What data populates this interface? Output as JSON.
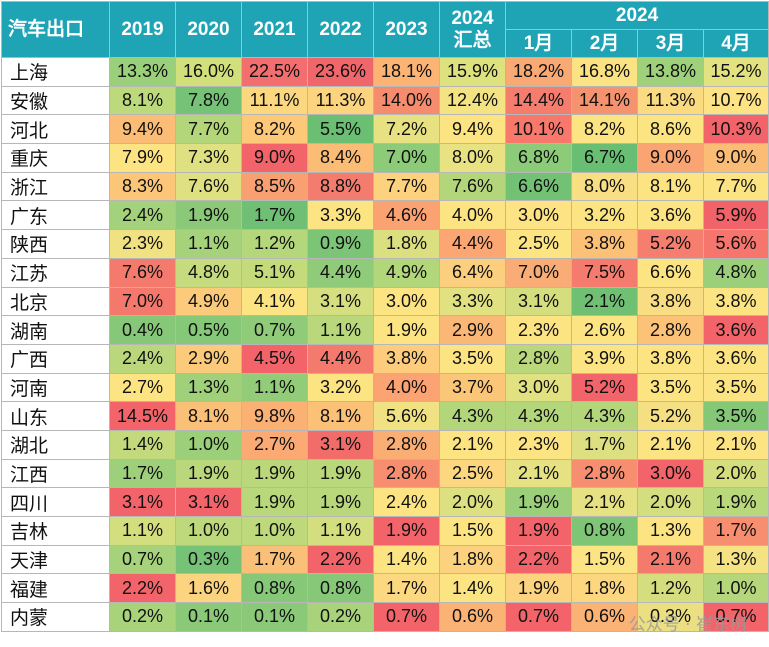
{
  "chart_data": {
    "type": "table",
    "title": "汽车出口",
    "columns": [
      "2019",
      "2020",
      "2021",
      "2022",
      "2023",
      "2024汇总",
      "1月",
      "2月",
      "3月",
      "4月"
    ],
    "header": {
      "corner": "汽车出口",
      "years": [
        "2019",
        "2020",
        "2021",
        "2022",
        "2023"
      ],
      "ytd_year": "2024",
      "ytd_label": "汇总",
      "month_group": "2024",
      "months": [
        "1月",
        "2月",
        "3月",
        "4月"
      ]
    },
    "rows": [
      {
        "province": "上海",
        "values": [
          "13.3%",
          "16.0%",
          "22.5%",
          "23.6%",
          "18.1%",
          "15.9%",
          "18.2%",
          "16.8%",
          "13.8%",
          "15.2%"
        ],
        "colors": [
          "#9bd07a",
          "#d2e07c",
          "#f36f6f",
          "#f0676b",
          "#fbb474",
          "#dde17e",
          "#f9a973",
          "#fbe283",
          "#9fd17b",
          "#e3e280"
        ]
      },
      {
        "province": "安徽",
        "values": [
          "8.1%",
          "7.8%",
          "11.1%",
          "11.3%",
          "14.0%",
          "12.4%",
          "14.4%",
          "14.1%",
          "11.3%",
          "10.7%"
        ],
        "colors": [
          "#bcd97b",
          "#76c277",
          "#fbd880",
          "#fcd47f",
          "#f58c6e",
          "#f4e383",
          "#f47d6e",
          "#f6936f",
          "#fbdb81",
          "#fde383"
        ]
      },
      {
        "province": "河北",
        "values": [
          "9.4%",
          "7.7%",
          "8.2%",
          "5.5%",
          "7.2%",
          "9.4%",
          "10.1%",
          "8.2%",
          "8.6%",
          "10.3%"
        ],
        "colors": [
          "#fbbc75",
          "#b4d67a",
          "#fdc878",
          "#6bbf73",
          "#e8e182",
          "#fde483",
          "#f8786c",
          "#fde483",
          "#fde483",
          "#f26469"
        ]
      },
      {
        "province": "重庆",
        "values": [
          "7.9%",
          "7.3%",
          "9.0%",
          "8.4%",
          "7.0%",
          "8.0%",
          "6.8%",
          "6.7%",
          "9.0%",
          "9.0%"
        ],
        "colors": [
          "#fde483",
          "#dfe081",
          "#f26469",
          "#fbbd75",
          "#8ccb78",
          "#e9e282",
          "#8ccb78",
          "#68bf73",
          "#fba473",
          "#fbbd76"
        ]
      },
      {
        "province": "浙江",
        "values": [
          "8.3%",
          "7.6%",
          "8.5%",
          "8.8%",
          "7.7%",
          "7.6%",
          "6.6%",
          "8.0%",
          "8.1%",
          "7.7%"
        ],
        "colors": [
          "#fcc678",
          "#dfe081",
          "#f9a072",
          "#f37c6e",
          "#fdd27e",
          "#b3d67a",
          "#73c175",
          "#f9df83",
          "#fde483",
          "#fde483"
        ]
      },
      {
        "province": "广东",
        "values": [
          "2.4%",
          "1.9%",
          "1.7%",
          "3.3%",
          "4.6%",
          "4.0%",
          "3.0%",
          "3.2%",
          "3.6%",
          "5.9%"
        ],
        "colors": [
          "#a4d17b",
          "#8bc979",
          "#6fc074",
          "#fde483",
          "#fba273",
          "#fde483",
          "#fde383",
          "#fde483",
          "#fde483",
          "#f26369"
        ]
      },
      {
        "province": "陕西",
        "values": [
          "2.3%",
          "1.1%",
          "1.2%",
          "0.9%",
          "1.8%",
          "4.4%",
          "2.5%",
          "3.8%",
          "5.2%",
          "5.6%"
        ],
        "colors": [
          "#f0e282",
          "#a5d27b",
          "#b5d77b",
          "#7cc476",
          "#dbdf80",
          "#fba673",
          "#fde483",
          "#fcc077",
          "#f67e6e",
          "#f6756c"
        ]
      },
      {
        "province": "江苏",
        "values": [
          "7.6%",
          "4.8%",
          "5.1%",
          "4.4%",
          "4.9%",
          "6.4%",
          "7.0%",
          "7.5%",
          "6.6%",
          "4.8%"
        ],
        "colors": [
          "#f37a6d",
          "#c6db7d",
          "#c4db7c",
          "#8fcb78",
          "#b2d67a",
          "#fbcf7e",
          "#f9ac75",
          "#f47b6d",
          "#fde483",
          "#9ccf79"
        ]
      },
      {
        "province": "北京",
        "values": [
          "7.0%",
          "4.9%",
          "4.1%",
          "3.1%",
          "3.0%",
          "3.3%",
          "3.1%",
          "2.1%",
          "3.8%",
          "3.8%"
        ],
        "colors": [
          "#f4786c",
          "#fcca7b",
          "#fde483",
          "#d6df7f",
          "#fde483",
          "#e1e182",
          "#d4de7f",
          "#70c074",
          "#f8dd82",
          "#fde483"
        ]
      },
      {
        "province": "湖南",
        "values": [
          "0.4%",
          "0.5%",
          "0.7%",
          "1.1%",
          "1.9%",
          "2.9%",
          "2.3%",
          "2.6%",
          "2.8%",
          "3.6%"
        ],
        "colors": [
          "#86c877",
          "#85c877",
          "#8fcb78",
          "#b8d87b",
          "#fde483",
          "#fbb776",
          "#fde483",
          "#fde483",
          "#fcc378",
          "#f26469"
        ]
      },
      {
        "province": "广西",
        "values": [
          "2.4%",
          "2.9%",
          "4.5%",
          "4.4%",
          "3.8%",
          "3.5%",
          "2.8%",
          "3.9%",
          "3.8%",
          "3.6%"
        ],
        "colors": [
          "#bad87b",
          "#fbca7b",
          "#f26469",
          "#f37a6d",
          "#fdcc7d",
          "#fde483",
          "#bad87b",
          "#fde483",
          "#fde483",
          "#fde483"
        ]
      },
      {
        "province": "河南",
        "values": [
          "2.7%",
          "1.3%",
          "1.1%",
          "3.2%",
          "4.0%",
          "3.7%",
          "3.0%",
          "5.2%",
          "3.5%",
          "3.5%"
        ],
        "colors": [
          "#fde483",
          "#a0d07a",
          "#92cc79",
          "#fde483",
          "#fba373",
          "#fcc678",
          "#e1e182",
          "#f26469",
          "#fde483",
          "#fde483"
        ]
      },
      {
        "province": "山东",
        "values": [
          "14.5%",
          "8.1%",
          "9.8%",
          "8.1%",
          "5.6%",
          "4.3%",
          "4.3%",
          "4.3%",
          "5.2%",
          "3.5%"
        ],
        "colors": [
          "#f26469",
          "#fbc077",
          "#fbb174",
          "#fbc177",
          "#f0e282",
          "#b3d67a",
          "#b3d67a",
          "#b4d67a",
          "#f4df83",
          "#84c777"
        ]
      },
      {
        "province": "湖北",
        "values": [
          "1.4%",
          "1.0%",
          "2.7%",
          "3.1%",
          "2.8%",
          "2.1%",
          "2.3%",
          "1.7%",
          "2.1%",
          "2.1%"
        ],
        "colors": [
          "#c2da7c",
          "#9ccf79",
          "#fbaa74",
          "#f26d6a",
          "#fbae74",
          "#fde483",
          "#fde483",
          "#dddf81",
          "#fde483",
          "#fde483"
        ]
      },
      {
        "province": "江西",
        "values": [
          "1.7%",
          "1.9%",
          "1.9%",
          "1.9%",
          "2.8%",
          "2.5%",
          "2.1%",
          "2.8%",
          "3.0%",
          "2.0%"
        ],
        "colors": [
          "#9ecf7a",
          "#bad87b",
          "#bad87b",
          "#bad87b",
          "#f88e70",
          "#fcd77f",
          "#e6e182",
          "#f88e70",
          "#f26469",
          "#d4de7f"
        ]
      },
      {
        "province": "四川",
        "values": [
          "3.1%",
          "3.1%",
          "1.9%",
          "1.9%",
          "2.4%",
          "2.0%",
          "1.9%",
          "2.1%",
          "2.0%",
          "1.9%"
        ],
        "colors": [
          "#f26469",
          "#f26469",
          "#b9d77b",
          "#b9d77b",
          "#fde483",
          "#dde081",
          "#9ccf79",
          "#e6e182",
          "#d3de7f",
          "#b9d77b"
        ]
      },
      {
        "province": "吉林",
        "values": [
          "1.1%",
          "1.0%",
          "1.0%",
          "1.1%",
          "1.9%",
          "1.5%",
          "1.9%",
          "0.8%",
          "1.3%",
          "1.7%"
        ],
        "colors": [
          "#d3de7f",
          "#bdd97b",
          "#bdd97b",
          "#d3de7f",
          "#f26469",
          "#fde483",
          "#f26469",
          "#7fc576",
          "#fde483",
          "#f88e70"
        ]
      },
      {
        "province": "天津",
        "values": [
          "0.7%",
          "0.3%",
          "1.7%",
          "2.2%",
          "1.4%",
          "1.8%",
          "2.2%",
          "1.5%",
          "2.1%",
          "1.3%"
        ],
        "colors": [
          "#a5d27b",
          "#76c277",
          "#fbc077",
          "#f26469",
          "#fde483",
          "#fdd27e",
          "#f26469",
          "#fde483",
          "#f47a6d",
          "#f4e283"
        ]
      },
      {
        "province": "福建",
        "values": [
          "2.2%",
          "1.6%",
          "0.8%",
          "0.8%",
          "1.7%",
          "1.4%",
          "1.9%",
          "1.8%",
          "1.2%",
          "1.0%"
        ],
        "colors": [
          "#f26469",
          "#fcd37f",
          "#86c877",
          "#86c877",
          "#fcd980",
          "#fde483",
          "#fcd37f",
          "#fcd77f",
          "#d4de7f",
          "#b5d67a"
        ]
      },
      {
        "province": "内蒙",
        "values": [
          "0.2%",
          "0.1%",
          "0.1%",
          "0.2%",
          "0.7%",
          "0.6%",
          "0.7%",
          "0.6%",
          "0.3%",
          "0.7%"
        ],
        "colors": [
          "#a8d37b",
          "#89c978",
          "#89c978",
          "#a8d37b",
          "#f26469",
          "#fbb275",
          "#f26469",
          "#fbb275",
          "#ecdf82",
          "#f26469"
        ]
      }
    ]
  },
  "watermark": "公众号 · 崔东树"
}
